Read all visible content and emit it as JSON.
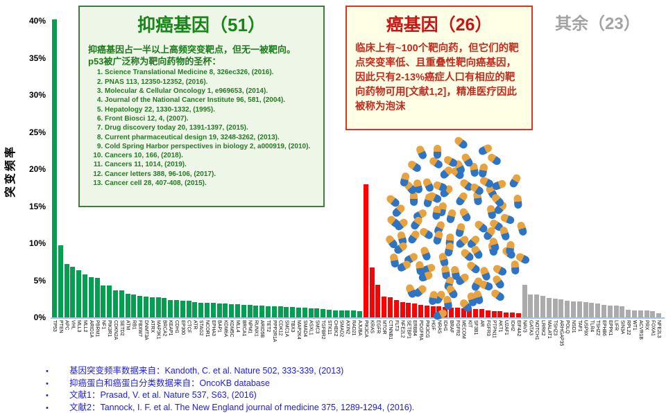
{
  "chart_data": {
    "type": "bar",
    "title": "",
    "ylabel": "突变频率",
    "ylim": [
      0,
      40
    ],
    "yticks": [
      "0%",
      "5%",
      "10%",
      "15%",
      "20%",
      "25%",
      "30%",
      "35%",
      "40%"
    ],
    "grid": false,
    "legend_position": "none",
    "series": [
      {
        "name": "抑癌基因",
        "count": 51,
        "color": "#00A050",
        "genes": [
          "TP53",
          "PTEN",
          "APC",
          "VHL",
          "MLL3",
          "MLL2",
          "ARID1A",
          "PBRM1",
          "NF1",
          "PIK3R1",
          "CDKN2A",
          "SETD2",
          "ATM",
          "RB1",
          "FBXW7",
          "DNMT3A",
          "ATRX",
          "MAP3K1",
          "BRCA2",
          "KEAP1",
          "CDH1",
          "EP300",
          "CTCF",
          "ATR",
          "STAG2",
          "NCOR1",
          "EPHA3",
          "BAP1",
          "KDM6A",
          "KDM5C",
          "MLL4",
          "BRCA1",
          "NPM1",
          "RUNX1",
          "ARID5B",
          "TET2",
          "PPP2R1A",
          "CDK12",
          "SMC1A",
          "TBX3",
          "MAP2K4",
          "SMAD4",
          "ASXL1",
          "SMC3",
          "TGFBR2",
          "STK11",
          "CHEK2",
          "SMAD2",
          "AXIN2",
          "RAD21",
          "AJUBA"
        ],
        "values": [
          40.2,
          9.7,
          7.2,
          6.8,
          6.4,
          5.8,
          5.4,
          5.3,
          4.3,
          4.3,
          3.6,
          3.6,
          3.2,
          3.1,
          2.9,
          2.8,
          2.75,
          2.75,
          2.65,
          2.35,
          2.3,
          2.25,
          2.2,
          2.1,
          2.0,
          2.0,
          1.95,
          1.9,
          1.85,
          1.8,
          1.75,
          1.7,
          1.65,
          1.6,
          1.55,
          1.5,
          1.5,
          1.45,
          1.4,
          1.4,
          1.35,
          1.3,
          1.25,
          1.2,
          1.15,
          1.0,
          0.95,
          0.9,
          0.9,
          0.9,
          0.85
        ]
      },
      {
        "name": "癌基因",
        "count": 26,
        "color": "#FF0000",
        "genes": [
          "PIK3CA",
          "KRAS",
          "EGFR",
          "MTOR",
          "CTNNB1",
          "FLT3",
          "NFE2L2",
          "SETBP1",
          "ERBB4",
          "PDGFRA",
          "PIK3CG",
          "HGF",
          "NRAS",
          "IDH1",
          "BRAF",
          "FGFR2",
          "MECOM",
          "KIT",
          "SF3B1",
          "AR",
          "FGFR3",
          "PTPN11",
          "AKT1",
          "U2AF1",
          "IDH2",
          "EIF4A2"
        ],
        "values": [
          17.9,
          6.7,
          4.4,
          2.8,
          2.7,
          2.35,
          2.1,
          2.0,
          1.9,
          1.65,
          1.6,
          1.5,
          1.45,
          1.4,
          1.35,
          1.35,
          1.25,
          1.25,
          1.15,
          1.1,
          0.95,
          0.85,
          0.8,
          0.7,
          0.65,
          0.55
        ]
      },
      {
        "name": "其余",
        "count": 23,
        "color": "#ABABAB",
        "genes": [
          "NAV3",
          "GATA3",
          "NOTCH1",
          "LRRK2",
          "MALAT1",
          "TSHZ3",
          "ARHGAP35",
          "POLQ",
          "NSD1",
          "TAF1",
          "USP9X",
          "TLR4",
          "TSHZ2",
          "EPHB6",
          "EPPK1",
          "LIFR",
          "SIN3A",
          "RPL22",
          "WT1",
          "ACVR1B",
          "PRX",
          "FOXA1",
          "NFE2L3"
        ],
        "values": [
          4.4,
          3.1,
          3.05,
          2.9,
          2.65,
          2.55,
          2.4,
          2.25,
          2.15,
          2.15,
          2.1,
          1.95,
          1.85,
          1.7,
          1.6,
          1.55,
          1.45,
          1.0,
          0.9,
          0.9,
          0.9,
          0.8,
          0.6
        ]
      }
    ]
  },
  "boxes": {
    "tumor_suppressor": {
      "title": "抑癌基因（51）",
      "para1": "抑癌基因占一半以上高频突变靶点，但无一被靶向。",
      "para2_prefix": "p53被广泛称为",
      "para2_bold": "靶向药物的圣杯",
      "para2_colon": "：",
      "references": [
        "Science Translational Medicine 8, 326ec326, (2016).",
        "PNAS 113, 12350-12352, (2016).",
        "Molecular & Cellular Oncology 1, e969653, (2014).",
        "Journal of the National Cancer Institute 96, 581, (2004).",
        "Hepatology 22, 1330-1332, (1995).",
        "Front Biosci 12, 4, (2007).",
        "Drug discovery today 20, 1391-1397, (2015).",
        "Current pharmaceutical design 19, 3248-3262, (2013).",
        "Cold Spring Harbor perspectives in biology 2, a000919, (2010).",
        "Cancers 10, 166, (2018).",
        "Cancers 11, 1014, (2019).",
        "Cancer letters 388, 96-106, (2017).",
        "Cancer cell 28, 407-408, (2015)."
      ]
    },
    "oncogene": {
      "title": "癌基因（26）",
      "body_pre": "临床上有~100个靶向药，但它们的靶点突变率低、且重叠性靶向癌基因，因此只有",
      "body_bold": "2-13%",
      "body_post": "癌症人口有相应的靶向药物可用[文献1,2]，精准医疗因此被称为泡沫"
    },
    "rest_label": "其余（23）"
  },
  "pills": {
    "count": 100,
    "cap_color": "#E8A33C",
    "body_color": "#2E74C4",
    "seed": 11
  },
  "footer": [
    "基因突变频率数据来自：Kandoth, C. et al. Nature 502, 333-339, (2013)",
    "抑癌蛋白和癌蛋白分类数据来自：OncoKB database",
    "文献1：Prasad, V. et al. Nature 537, S63, (2016)",
    "文献2：Tannock, I. F. et al. The New England journal of medicine 375, 1289-1294, (2016)."
  ]
}
